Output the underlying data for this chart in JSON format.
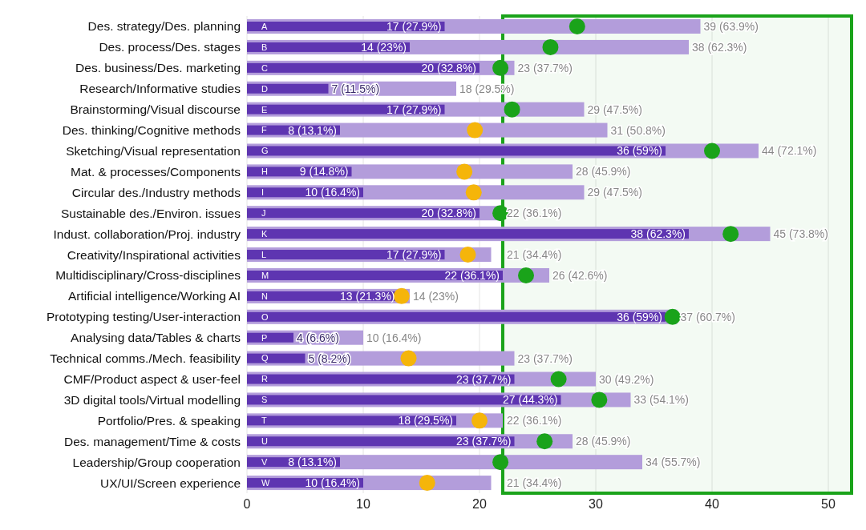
{
  "chart_data": {
    "type": "bar",
    "orientation": "horizontal",
    "categories": [
      "Des. strategy/Des. planning",
      "Des. process/Des. stages",
      "Des. business/Des. marketing",
      "Research/Informative studies",
      "Brainstorming/Visual discourse",
      "Des. thinking/Cognitive methods",
      "Sketching/Visual representation",
      "Mat. & processes/Components",
      "Circular des./Industry methods",
      "Sustainable des./Environ. issues",
      "Indust. collaboration/Proj. industry",
      "Creativity/Inspirational activities",
      "Multidisciplinary/Cross-disciplines",
      "Artificial intelligence/Working AI",
      "Prototyping testing/User-interaction",
      "Analysing data/Tables & charts",
      "Technical comms./Mech. feasibility",
      "CMF/Product aspect & user-feel",
      "3D digital tools/Virtual modelling",
      "Portfolio/Pres. & speaking",
      "Des. management/Time & costs",
      "Leadership/Group cooperation",
      "UX/UI/Screen experience"
    ],
    "series": [
      {
        "color": "#b39ddb",
        "values": [
          39,
          38,
          23,
          18,
          29,
          31,
          44,
          28,
          29,
          22,
          45,
          21,
          26,
          14,
          37,
          10,
          23,
          30,
          33,
          22,
          28,
          34,
          21
        ],
        "value_labels": [
          "39 (63.9%)",
          "38 (62.3%)",
          "23 (37.7%)",
          "18 (29.5%)",
          "29 (47.5%)",
          "31 (50.8%)",
          "44 (72.1%)",
          "28 (45.9%)",
          "29 (47.5%)",
          "22 (36.1%)",
          "45 (73.8%)",
          "21 (34.4%)",
          "26 (42.6%)",
          "14 (23%)",
          "37 (60.7%)",
          "10 (16.4%)",
          "23 (37.7%)",
          "30 (49.2%)",
          "33 (54.1%)",
          "22 (36.1%)",
          "28 (45.9%)",
          "34 (55.7%)",
          "21 (34.4%)"
        ]
      },
      {
        "color": "#5e35b1",
        "values": [
          17,
          14,
          20,
          7,
          17,
          8,
          36,
          9,
          10,
          20,
          38,
          17,
          22,
          13,
          36,
          4,
          5,
          23,
          27,
          18,
          23,
          8,
          10
        ],
        "value_labels": [
          "17 (27.9%)",
          "14 (23%)",
          "20 (32.8%)",
          "7 (11.5%)",
          "17 (27.9%)",
          "8 (13.1%)",
          "36 (59%)",
          "9 (14.8%)",
          "10 (16.4%)",
          "20 (32.8%)",
          "38 (62.3%)",
          "17 (27.9%)",
          "22 (36.1%)",
          "13 (21.3%)",
          "36 (59%)",
          "4 (6.6%)",
          "5 (8.2%)",
          "23 (37.7%)",
          "27 (44.3%)",
          "18 (29.5%)",
          "23 (37.7%)",
          "8 (13.1%)",
          "10 (16.4%)"
        ]
      },
      {
        "type": "scatter",
        "colors": [
          "#1aa31a",
          "#1aa31a",
          "#1aa31a",
          null,
          "#1aa31a",
          "#f5b50a",
          "#1aa31a",
          "#f5b50a",
          "#f5b50a",
          "#1aa31a",
          "#1aa31a",
          "#f5b50a",
          "#1aa31a",
          "#f5b50a",
          "#1aa31a",
          null,
          "#f5b50a",
          "#1aa31a",
          "#1aa31a",
          "#f5b50a",
          "#1aa31a",
          "#1aa31a",
          "#f5b50a"
        ],
        "values": [
          28.4,
          26.1,
          21.8,
          null,
          22.8,
          19.6,
          40,
          18.7,
          19.5,
          21.8,
          41.6,
          19,
          24,
          13.3,
          36.6,
          null,
          13.9,
          26.8,
          30.3,
          20,
          25.6,
          21.8,
          15.5
        ]
      }
    ],
    "annotations": [
      "A",
      "B",
      "C",
      "D",
      "E",
      "F",
      "G",
      "H",
      "I",
      "J",
      "K",
      "L",
      "M",
      "N",
      "O",
      "P",
      "Q",
      "R",
      "S",
      "T",
      "U",
      "V",
      "W"
    ],
    "bands": [
      {
        "axis": "x",
        "from": 22,
        "to": 52,
        "color": "#1aa31a"
      }
    ],
    "xlim": [
      0,
      52
    ],
    "xticks": [
      0,
      10,
      20,
      30,
      40,
      50
    ],
    "grid": "x"
  }
}
